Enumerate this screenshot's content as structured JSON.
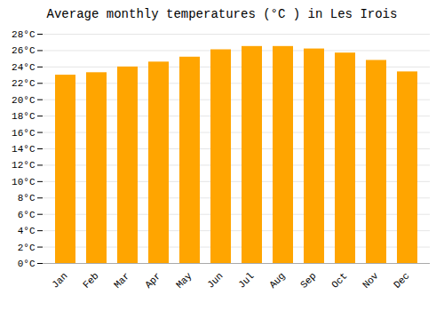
{
  "chart_data": {
    "type": "bar",
    "title": "Average monthly temperatures (°C ) in Les Irois",
    "categories": [
      "Jan",
      "Feb",
      "Mar",
      "Apr",
      "May",
      "Jun",
      "Jul",
      "Aug",
      "Sep",
      "Oct",
      "Nov",
      "Dec"
    ],
    "values": [
      23.0,
      23.3,
      24.0,
      24.6,
      25.2,
      26.1,
      26.5,
      26.5,
      26.2,
      25.7,
      24.8,
      23.4
    ],
    "color": "#FFA500",
    "ylim": [
      0,
      28
    ],
    "yticks": [
      {
        "value": 0,
        "label": "0°C"
      },
      {
        "value": 2,
        "label": "2°C"
      },
      {
        "value": 4,
        "label": "4°C"
      },
      {
        "value": 6,
        "label": "6°C"
      },
      {
        "value": 8,
        "label": "8°C"
      },
      {
        "value": 10,
        "label": "10°C"
      },
      {
        "value": 12,
        "label": "12°C"
      },
      {
        "value": 14,
        "label": "14°C"
      },
      {
        "value": 16,
        "label": "16°C"
      },
      {
        "value": 18,
        "label": "18°C"
      },
      {
        "value": 20,
        "label": "20°C"
      },
      {
        "value": 22,
        "label": "22°C"
      },
      {
        "value": 24,
        "label": "24°C"
      },
      {
        "value": 26,
        "label": "26°C"
      },
      {
        "value": 28,
        "label": "28°C"
      }
    ],
    "grid": true
  }
}
